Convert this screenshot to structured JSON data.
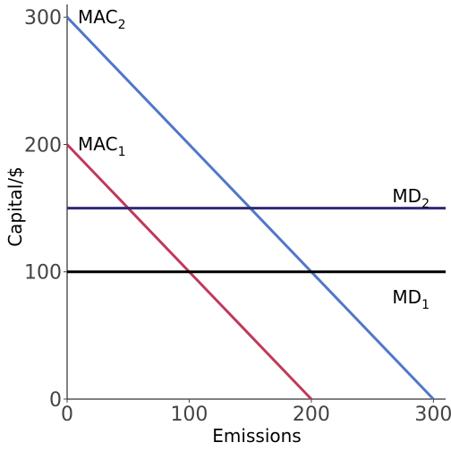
{
  "chart_data": {
    "type": "line",
    "xlabel": "Emissions",
    "ylabel": "Capital/$",
    "xlim": [
      0,
      310
    ],
    "ylim": [
      0,
      310
    ],
    "xticks": [
      "0",
      "100",
      "200",
      "300"
    ],
    "yticks": [
      "0",
      "100",
      "200",
      "300"
    ],
    "grid": false,
    "series": [
      {
        "name": "MAC",
        "sub": "2",
        "color": "#5077c9",
        "x": [
          0,
          300
        ],
        "y": [
          300,
          0
        ]
      },
      {
        "name": "MAC",
        "sub": "1",
        "color": "#c0395a",
        "x": [
          0,
          200
        ],
        "y": [
          200,
          0
        ]
      },
      {
        "name": "MD",
        "sub": "2",
        "color": "#2e2a78",
        "x": [
          0,
          310
        ],
        "y": [
          150,
          150
        ]
      },
      {
        "name": "MD",
        "sub": "1",
        "color": "#000000",
        "x": [
          0,
          310
        ],
        "y": [
          100,
          100
        ]
      }
    ]
  }
}
